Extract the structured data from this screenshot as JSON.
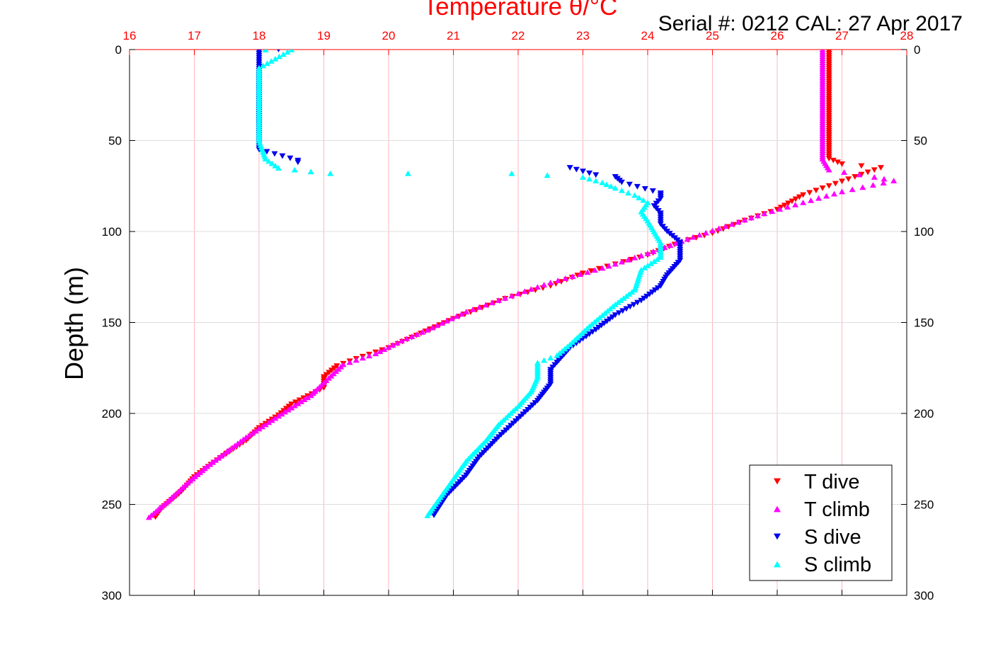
{
  "chart_data": {
    "type": "scatter",
    "title": "Temperature θ/°C",
    "subtitle": "Serial #: 0212  CAL: 27 Apr 2017",
    "xlabel": "Temperature θ/°C",
    "ylabel": "Depth (m)",
    "xlim": [
      16,
      28
    ],
    "ylim": [
      300,
      0
    ],
    "x_ticks": [
      "16",
      "17",
      "18",
      "19",
      "20",
      "21",
      "22",
      "23",
      "24",
      "25",
      "26",
      "27",
      "28"
    ],
    "y_ticks": [
      "0",
      "50",
      "100",
      "150",
      "200",
      "250",
      "300"
    ],
    "grid": true,
    "x_grid_color": "#ffb6c1",
    "y_grid_color": "#dddddd",
    "legend_position": "bottom-right",
    "series": [
      {
        "name": "T dive",
        "color": "#ff0000",
        "marker": "triangle-down",
        "points": [
          [
            26.8,
            0
          ],
          [
            26.8,
            20
          ],
          [
            26.8,
            40
          ],
          [
            26.8,
            60
          ],
          [
            27.0,
            63
          ],
          [
            27.6,
            65
          ],
          [
            27.2,
            70
          ],
          [
            26.4,
            80
          ],
          [
            26.0,
            88
          ],
          [
            25.5,
            94
          ],
          [
            25.0,
            101
          ],
          [
            24.5,
            106
          ],
          [
            24.0,
            113
          ],
          [
            23.0,
            123
          ],
          [
            22.5,
            130
          ],
          [
            21.8,
            137
          ],
          [
            21.0,
            148
          ],
          [
            20.5,
            156
          ],
          [
            20.0,
            164
          ],
          [
            19.5,
            170
          ],
          [
            19.2,
            174
          ],
          [
            19.0,
            180
          ],
          [
            19.0,
            186
          ],
          [
            18.5,
            195
          ],
          [
            18.3,
            201
          ],
          [
            18.0,
            208
          ],
          [
            17.8,
            215
          ],
          [
            17.5,
            222
          ],
          [
            17.3,
            227
          ],
          [
            17.0,
            235
          ],
          [
            16.8,
            243
          ],
          [
            16.5,
            252
          ],
          [
            16.4,
            257
          ]
        ]
      },
      {
        "name": "T climb",
        "color": "#ff00ff",
        "marker": "triangle-up",
        "points": [
          [
            26.7,
            0
          ],
          [
            26.7,
            20
          ],
          [
            26.7,
            40
          ],
          [
            26.7,
            60
          ],
          [
            26.8,
            66
          ],
          [
            27.5,
            70
          ],
          [
            27.8,
            72
          ],
          [
            27.0,
            78
          ],
          [
            26.4,
            84
          ],
          [
            25.8,
            90
          ],
          [
            25.2,
            97
          ],
          [
            24.7,
            103
          ],
          [
            24.0,
            112
          ],
          [
            23.3,
            120
          ],
          [
            22.5,
            128
          ],
          [
            22.0,
            134
          ],
          [
            21.2,
            144
          ],
          [
            20.6,
            154
          ],
          [
            20.2,
            160
          ],
          [
            19.8,
            167
          ],
          [
            19.3,
            173
          ],
          [
            19.0,
            183
          ],
          [
            18.8,
            190
          ],
          [
            18.4,
            199
          ],
          [
            18.1,
            206
          ],
          [
            17.8,
            213
          ],
          [
            17.5,
            221
          ],
          [
            17.2,
            229
          ],
          [
            16.9,
            238
          ],
          [
            16.6,
            248
          ],
          [
            16.3,
            257
          ]
        ]
      },
      {
        "name": "S dive",
        "color": "#0000ee",
        "marker": "triangle-down",
        "points": [
          [
            18.3,
            0
          ],
          [
            18.5,
            0
          ],
          [
            18.0,
            1
          ],
          [
            18.0,
            20
          ],
          [
            18.0,
            40
          ],
          [
            18.0,
            55
          ],
          [
            18.6,
            61
          ],
          [
            18.6,
            62
          ],
          [
            22.8,
            65
          ],
          [
            23.0,
            67
          ],
          [
            23.2,
            69
          ],
          [
            23.5,
            70
          ],
          [
            23.6,
            73
          ],
          [
            24.2,
            79
          ],
          [
            24.2,
            82
          ],
          [
            24.1,
            86
          ],
          [
            24.2,
            90
          ],
          [
            24.2,
            96
          ],
          [
            24.3,
            100
          ],
          [
            24.5,
            106
          ],
          [
            24.5,
            110
          ],
          [
            24.5,
            116
          ],
          [
            24.3,
            124
          ],
          [
            24.2,
            130
          ],
          [
            23.9,
            138
          ],
          [
            23.5,
            146
          ],
          [
            23.2,
            154
          ],
          [
            22.8,
            164
          ],
          [
            22.6,
            172
          ],
          [
            22.5,
            176
          ],
          [
            22.5,
            184
          ],
          [
            22.3,
            193
          ],
          [
            22.0,
            203
          ],
          [
            21.7,
            213
          ],
          [
            21.4,
            224
          ],
          [
            21.2,
            234
          ],
          [
            20.9,
            245
          ],
          [
            20.7,
            256
          ]
        ]
      },
      {
        "name": "S climb",
        "color": "#00ffff",
        "marker": "triangle-up",
        "points": [
          [
            18.1,
            0
          ],
          [
            18.5,
            0
          ],
          [
            18.0,
            10
          ],
          [
            18.0,
            30
          ],
          [
            18.0,
            50
          ],
          [
            18.1,
            60
          ],
          [
            18.3,
            65
          ],
          [
            18.8,
            67
          ],
          [
            19.1,
            68
          ],
          [
            20.3,
            68
          ],
          [
            21.9,
            68
          ],
          [
            23.0,
            70
          ],
          [
            23.3,
            73
          ],
          [
            23.5,
            76
          ],
          [
            23.8,
            80
          ],
          [
            24.0,
            84
          ],
          [
            23.9,
            89
          ],
          [
            24.0,
            94
          ],
          [
            24.1,
            100
          ],
          [
            24.2,
            106
          ],
          [
            24.2,
            114
          ],
          [
            23.9,
            121
          ],
          [
            23.8,
            132
          ],
          [
            23.5,
            140
          ],
          [
            23.1,
            152
          ],
          [
            22.8,
            162
          ],
          [
            22.6,
            168
          ],
          [
            22.3,
            172
          ],
          [
            22.3,
            180
          ],
          [
            22.2,
            188
          ],
          [
            22.0,
            196
          ],
          [
            21.7,
            206
          ],
          [
            21.5,
            215
          ],
          [
            21.2,
            226
          ],
          [
            21.0,
            236
          ],
          [
            20.8,
            246
          ],
          [
            20.6,
            256
          ]
        ]
      }
    ]
  }
}
